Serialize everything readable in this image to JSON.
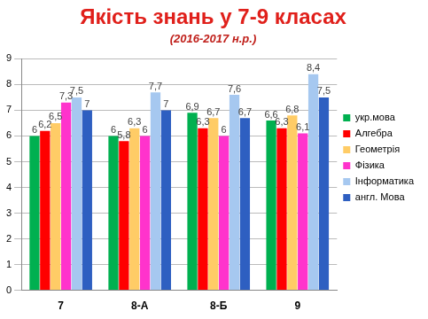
{
  "chart_data": {
    "type": "bar",
    "title": "Якість знань у 7-9 класах",
    "subtitle": "(2016-2017 н.р.)",
    "categories": [
      "7",
      "8-А",
      "8-Б",
      "9"
    ],
    "series": [
      {
        "name": "укр.мова",
        "color": "#00b050",
        "values": [
          6,
          6,
          6.9,
          6.6
        ],
        "value_labels": [
          "6",
          "6",
          "6,9",
          "6,6"
        ]
      },
      {
        "name": "Алгебра",
        "color": "#ff0000",
        "values": [
          6.2,
          5.8,
          6.3,
          6.3
        ],
        "value_labels": [
          "6,2",
          "5,8",
          "6,3",
          "6,3"
        ]
      },
      {
        "name": "Геометрія",
        "color": "#ffcc66",
        "values": [
          6.5,
          6.3,
          6.7,
          6.8
        ],
        "value_labels": [
          "6,5",
          "6,3",
          "6,7",
          "6,8"
        ]
      },
      {
        "name": "Фізика",
        "color": "#ff33cc",
        "values": [
          7.3,
          6,
          6,
          6.1
        ],
        "value_labels": [
          "7,3",
          "6",
          "6",
          "6,1"
        ]
      },
      {
        "name": "Інформатика",
        "color": "#a6c8f0",
        "values": [
          7.5,
          7.7,
          7.6,
          8.4
        ],
        "value_labels": [
          "7,5",
          "7,7",
          "7,6",
          "8,4"
        ]
      },
      {
        "name": "англ. Мова",
        "color": "#2e5fc1",
        "values": [
          7,
          7,
          6.7,
          7.5
        ],
        "value_labels": [
          "7",
          "7",
          "6,7",
          "7,5"
        ]
      }
    ],
    "ylim": [
      0,
      9
    ],
    "yticks": [
      0,
      1,
      2,
      3,
      4,
      5,
      6,
      7,
      8,
      9
    ],
    "grid": true,
    "legend": "right",
    "data_labels": true
  }
}
